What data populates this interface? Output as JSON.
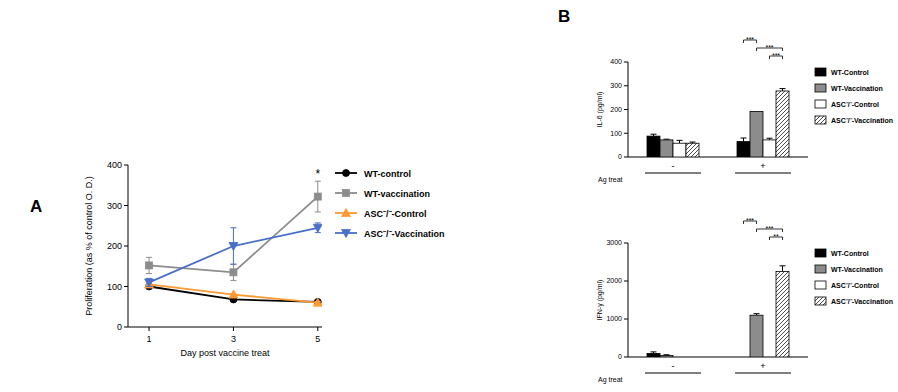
{
  "chart_data": [
    {
      "type": "line",
      "title": "A",
      "x_label": "Day post vaccine treat",
      "y_label": "Proliferation (as % of control O. D.)",
      "x": [
        1,
        3,
        5
      ],
      "xlim": [
        0.5,
        5.1
      ],
      "xticks": [
        1,
        3,
        5
      ],
      "ylim": [
        0,
        400
      ],
      "yticks": [
        0,
        100,
        200,
        300,
        400
      ],
      "legend": "right",
      "series": [
        {
          "name": "WT-control",
          "color": "#000000",
          "marker": "circle",
          "values": [
            100,
            68,
            62
          ],
          "errors": [
            5,
            4,
            4
          ]
        },
        {
          "name": "WT-vaccination",
          "color": "#8c8c8c",
          "marker": "square",
          "values": [
            152,
            135,
            322
          ],
          "errors": [
            20,
            20,
            38
          ]
        },
        {
          "name": "ASC⁻/⁻-Control",
          "color": "#ff9933",
          "marker": "triangle-up",
          "values": [
            105,
            80,
            60
          ],
          "errors": [
            3,
            3,
            3
          ]
        },
        {
          "name": "ASC⁻/⁻-Vaccination",
          "color": "#4a6fc8",
          "marker": "triangle-down",
          "values": [
            110,
            200,
            245
          ],
          "errors": [
            10,
            45,
            12
          ]
        }
      ],
      "annotations": [
        {
          "text": "*",
          "x": 5
        }
      ]
    },
    {
      "type": "bar",
      "title": "B",
      "x_label": "Ag treat",
      "y_label": "IL-6 (pg/ml)",
      "categories": [
        "-",
        "+"
      ],
      "ylim": [
        0,
        400
      ],
      "yticks": [
        0,
        100,
        200,
        300,
        400
      ],
      "legend": "right",
      "series": [
        {
          "name": "WT-Control",
          "color": "#000000",
          "values": [
            88,
            65
          ],
          "errors": [
            8,
            15
          ]
        },
        {
          "name": "WT-Vaccination",
          "color": "#8c8c8c",
          "values": [
            72,
            192
          ],
          "errors": [
            3,
            0
          ]
        },
        {
          "name": "ASC⁻/⁻-Control",
          "color": "#ffffff",
          "values": [
            58,
            72
          ],
          "errors": [
            12,
            7
          ]
        },
        {
          "name": "ASC⁻/⁻-Vaccination",
          "color": "#ffffff",
          "line_style": "hatched",
          "values": [
            58,
            278
          ],
          "errors": [
            5,
            10
          ]
        }
      ],
      "annotations": [
        {
          "text": "***",
          "category": 1,
          "from": 0,
          "to": 1
        },
        {
          "text": "***",
          "category": 1,
          "from": 1,
          "to": 3
        },
        {
          "text": "***",
          "category": 1,
          "from": 2,
          "to": 3
        }
      ]
    },
    {
      "type": "bar",
      "x_label": "Ag treat",
      "y_label": "IFN-γ (pg/ml)",
      "categories": [
        "-",
        "+"
      ],
      "ylim": [
        0,
        3000
      ],
      "yticks": [
        0,
        1000,
        2000,
        3000
      ],
      "legend": "right",
      "series": [
        {
          "name": "WT-Control",
          "color": "#000000",
          "values": [
            95,
            0
          ],
          "errors": [
            40,
            0
          ]
        },
        {
          "name": "WT-Vaccination",
          "color": "#8c8c8c",
          "values": [
            40,
            1100
          ],
          "errors": [
            20,
            40
          ]
        },
        {
          "name": "ASC⁻/⁻-Control",
          "color": "#ffffff",
          "values": [
            0,
            0
          ],
          "errors": [
            0,
            0
          ]
        },
        {
          "name": "ASC⁻/⁻-Vaccination",
          "color": "#ffffff",
          "line_style": "hatched",
          "values": [
            0,
            2250
          ],
          "errors": [
            0,
            150
          ]
        }
      ],
      "annotations": [
        {
          "text": "***",
          "category": 1,
          "from": 0,
          "to": 1
        },
        {
          "text": "***",
          "category": 1,
          "from": 1,
          "to": 3
        },
        {
          "text": "**",
          "category": 1,
          "from": 2,
          "to": 3
        }
      ]
    }
  ]
}
